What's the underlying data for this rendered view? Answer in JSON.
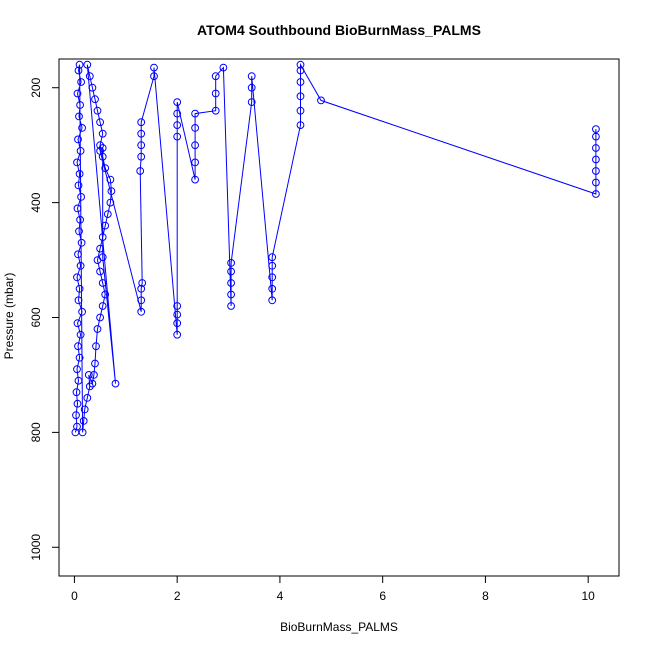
{
  "chart_data": {
    "type": "scatter",
    "title": "ATOM4 Southbound BioBurnMass_PALMS",
    "xlabel": "BioBurnMass_PALMS",
    "ylabel": "Pressure (mbar)",
    "xlim": [
      -0.3,
      10.6
    ],
    "ylim": [
      1050,
      150
    ],
    "y_reversed": true,
    "grid": false,
    "legend": "none",
    "colors": {
      "series": "#0000ff",
      "axis": "#000000"
    },
    "xticks": [
      0,
      2,
      4,
      6,
      8,
      10
    ],
    "yticks": [
      200,
      400,
      600,
      800,
      1000
    ],
    "series": [
      {
        "marker": "open-circle",
        "line": true,
        "points": [
          [
            0.02,
            800
          ],
          [
            0.05,
            790
          ],
          [
            0.03,
            770
          ],
          [
            0.06,
            750
          ],
          [
            0.04,
            730
          ],
          [
            0.08,
            710
          ],
          [
            0.05,
            690
          ],
          [
            0.1,
            670
          ],
          [
            0.07,
            650
          ],
          [
            0.12,
            630
          ],
          [
            0.06,
            610
          ],
          [
            0.15,
            590
          ],
          [
            0.08,
            570
          ],
          [
            0.1,
            550
          ],
          [
            0.05,
            530
          ],
          [
            0.12,
            510
          ],
          [
            0.07,
            490
          ],
          [
            0.14,
            470
          ],
          [
            0.09,
            450
          ],
          [
            0.11,
            430
          ],
          [
            0.06,
            410
          ],
          [
            0.13,
            390
          ],
          [
            0.08,
            370
          ],
          [
            0.1,
            350
          ],
          [
            0.05,
            330
          ],
          [
            0.12,
            310
          ],
          [
            0.07,
            290
          ],
          [
            0.15,
            270
          ],
          [
            0.09,
            250
          ],
          [
            0.11,
            230
          ],
          [
            0.06,
            210
          ],
          [
            0.13,
            190
          ],
          [
            0.08,
            170
          ],
          [
            0.1,
            160
          ],
          [
            0.16,
            800
          ],
          [
            0.18,
            780
          ],
          [
            0.2,
            760
          ],
          [
            0.25,
            740
          ],
          [
            0.3,
            720
          ],
          [
            0.28,
            700
          ],
          [
            0.35,
            715
          ],
          [
            0.38,
            700
          ],
          [
            0.4,
            680
          ],
          [
            0.42,
            650
          ],
          [
            0.45,
            620
          ],
          [
            0.5,
            600
          ],
          [
            0.55,
            580
          ],
          [
            0.6,
            560
          ],
          [
            0.55,
            540
          ],
          [
            0.5,
            520
          ],
          [
            0.45,
            500
          ],
          [
            0.5,
            480
          ],
          [
            0.55,
            460
          ],
          [
            0.6,
            440
          ],
          [
            0.65,
            420
          ],
          [
            0.7,
            400
          ],
          [
            0.72,
            380
          ],
          [
            0.7,
            360
          ],
          [
            0.6,
            340
          ],
          [
            0.55,
            320
          ],
          [
            0.5,
            300
          ],
          [
            0.55,
            280
          ],
          [
            0.5,
            260
          ],
          [
            0.45,
            240
          ],
          [
            0.4,
            220
          ],
          [
            0.35,
            200
          ],
          [
            0.3,
            180
          ],
          [
            0.25,
            160
          ],
          [
            0.8,
            715
          ],
          [
            0.55,
            495
          ],
          [
            0.55,
            305
          ],
          [
            0.5,
            310
          ],
          [
            1.3,
            590
          ],
          [
            1.3,
            570
          ],
          [
            1.3,
            550
          ],
          [
            1.32,
            540
          ],
          [
            1.28,
            345
          ],
          [
            1.3,
            320
          ],
          [
            1.3,
            300
          ],
          [
            1.3,
            280
          ],
          [
            1.3,
            260
          ],
          [
            1.55,
            180
          ],
          [
            1.55,
            165
          ],
          [
            2.0,
            630
          ],
          [
            2.0,
            610
          ],
          [
            2.0,
            595
          ],
          [
            2.0,
            580
          ],
          [
            2.0,
            285
          ],
          [
            2.0,
            265
          ],
          [
            2.0,
            245
          ],
          [
            2.0,
            225
          ],
          [
            2.35,
            360
          ],
          [
            2.35,
            330
          ],
          [
            2.35,
            300
          ],
          [
            2.35,
            270
          ],
          [
            2.35,
            245
          ],
          [
            2.75,
            240
          ],
          [
            2.75,
            210
          ],
          [
            2.75,
            180
          ],
          [
            2.9,
            165
          ],
          [
            3.05,
            580
          ],
          [
            3.05,
            560
          ],
          [
            3.05,
            540
          ],
          [
            3.05,
            520
          ],
          [
            3.05,
            505
          ],
          [
            3.45,
            225
          ],
          [
            3.45,
            200
          ],
          [
            3.45,
            180
          ],
          [
            3.85,
            570
          ],
          [
            3.85,
            550
          ],
          [
            3.85,
            530
          ],
          [
            3.85,
            510
          ],
          [
            3.85,
            495
          ],
          [
            4.4,
            265
          ],
          [
            4.4,
            240
          ],
          [
            4.4,
            215
          ],
          [
            4.4,
            190
          ],
          [
            4.4,
            170
          ],
          [
            4.4,
            160
          ],
          [
            4.8,
            222
          ],
          [
            10.15,
            385
          ],
          [
            10.15,
            365
          ],
          [
            10.15,
            345
          ],
          [
            10.15,
            325
          ],
          [
            10.15,
            305
          ],
          [
            10.15,
            285
          ],
          [
            10.15,
            272
          ]
        ]
      }
    ]
  }
}
